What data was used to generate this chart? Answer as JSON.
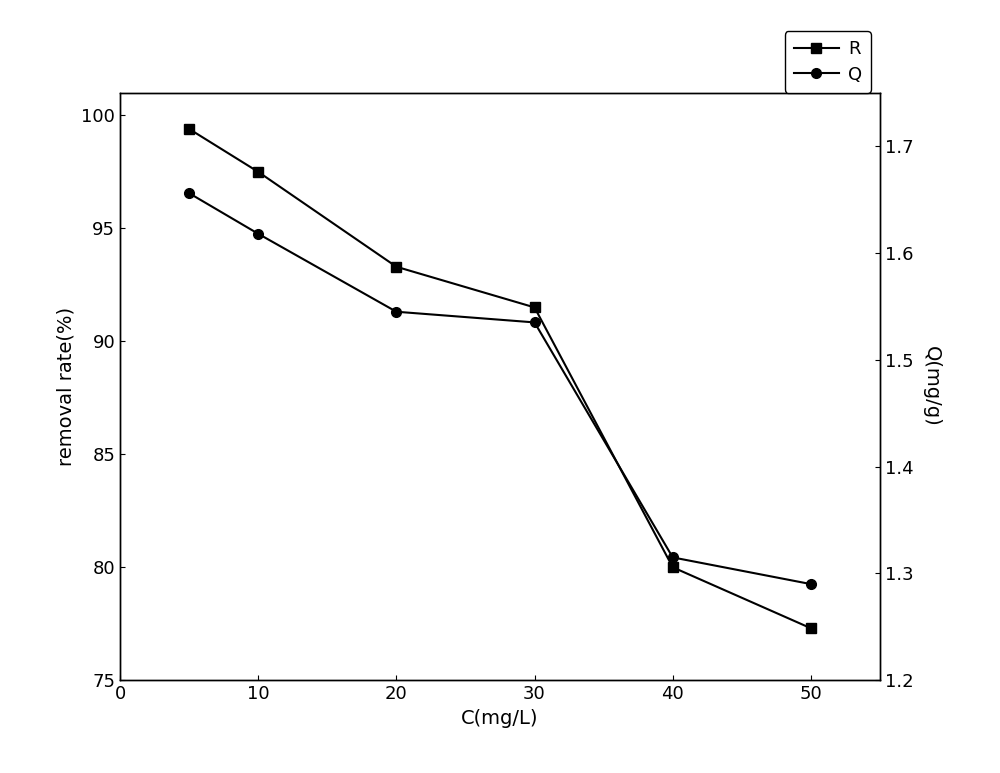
{
  "x": [
    5,
    10,
    20,
    30,
    40,
    50
  ],
  "R": [
    99.4,
    97.5,
    93.3,
    91.5,
    80.0,
    77.3
  ],
  "Q": [
    1.656,
    1.618,
    1.545,
    1.535,
    1.315,
    1.29
  ],
  "xlabel": "C(mg/L)",
  "ylabel_left": "removal rate(%)",
  "ylabel_right": "Q(mg/g)",
  "legend_R": "R",
  "legend_Q": "Q",
  "xlim": [
    0,
    55
  ],
  "ylim_left": [
    75,
    101
  ],
  "ylim_right": [
    1.2,
    1.75
  ],
  "yticks_left": [
    75,
    80,
    85,
    90,
    95,
    100
  ],
  "yticks_right": [
    1.2,
    1.3,
    1.4,
    1.5,
    1.6,
    1.7
  ],
  "xticks": [
    0,
    10,
    20,
    30,
    40,
    50
  ],
  "line_color": "#000000",
  "marker_R": "s",
  "marker_Q": "o",
  "markersize": 7,
  "linewidth": 1.5,
  "fontsize_label": 14,
  "fontsize_tick": 13,
  "fontsize_legend": 13,
  "bg_color": "#ffffff"
}
